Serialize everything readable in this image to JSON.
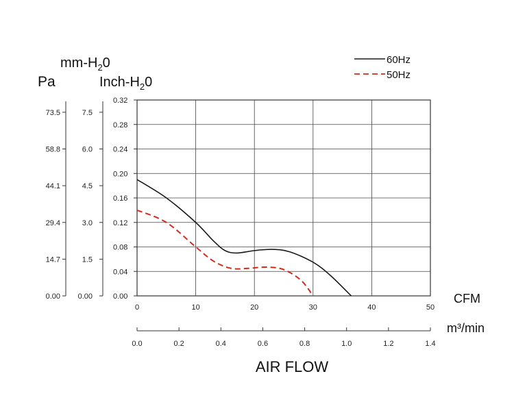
{
  "chart_data": {
    "type": "line",
    "xlabel": "AIR FLOW",
    "x_unit_primary": "CFM",
    "x_unit_secondary": "m³/min",
    "y_units": {
      "pa": "Pa",
      "mmh2o_prefix": "mm-H",
      "mmh2o_sub": "2",
      "mmh2o_suffix": "0",
      "inch_prefix": "Inch-H",
      "inch_sub": "2",
      "inch_suffix": "0"
    },
    "xlim": [
      0,
      50
    ],
    "ylim": [
      0,
      0.32
    ],
    "x_ticks_cfm": [
      "0",
      "10",
      "20",
      "30",
      "40",
      "50"
    ],
    "x_ticks_m3": [
      "0.0",
      "0.2",
      "0.4",
      "0.6",
      "0.8",
      "1.0",
      "1.2",
      "1.4"
    ],
    "y_ticks_inch": [
      "0.00",
      "0.04",
      "0.08",
      "0.12",
      "0.16",
      "0.20",
      "0.24",
      "0.28",
      "0.32"
    ],
    "y_ticks_mm": [
      "0.00",
      "1.5",
      "3.0",
      "4.5",
      "6.0",
      "7.5"
    ],
    "y_ticks_pa": [
      "0.00",
      "14.7",
      "29.4",
      "44.1",
      "58.8",
      "73.5"
    ],
    "grid": true,
    "legend_position": "top-right",
    "series": [
      {
        "name": "60Hz",
        "color": "#1a1a1a",
        "style": "solid",
        "points": [
          [
            0,
            0.19
          ],
          [
            5,
            0.16
          ],
          [
            10,
            0.12
          ],
          [
            13,
            0.09
          ],
          [
            15,
            0.074
          ],
          [
            17,
            0.07
          ],
          [
            20,
            0.074
          ],
          [
            23,
            0.076
          ],
          [
            26,
            0.072
          ],
          [
            30,
            0.055
          ],
          [
            33,
            0.033
          ],
          [
            36.5,
            0.0
          ]
        ]
      },
      {
        "name": "50Hz",
        "color": "#d42a1a",
        "style": "dashed",
        "points": [
          [
            0,
            0.14
          ],
          [
            5,
            0.12
          ],
          [
            10,
            0.08
          ],
          [
            13,
            0.057
          ],
          [
            16,
            0.045
          ],
          [
            19,
            0.045
          ],
          [
            22,
            0.047
          ],
          [
            25,
            0.043
          ],
          [
            28,
            0.025
          ],
          [
            30,
            0.0
          ]
        ]
      }
    ]
  }
}
